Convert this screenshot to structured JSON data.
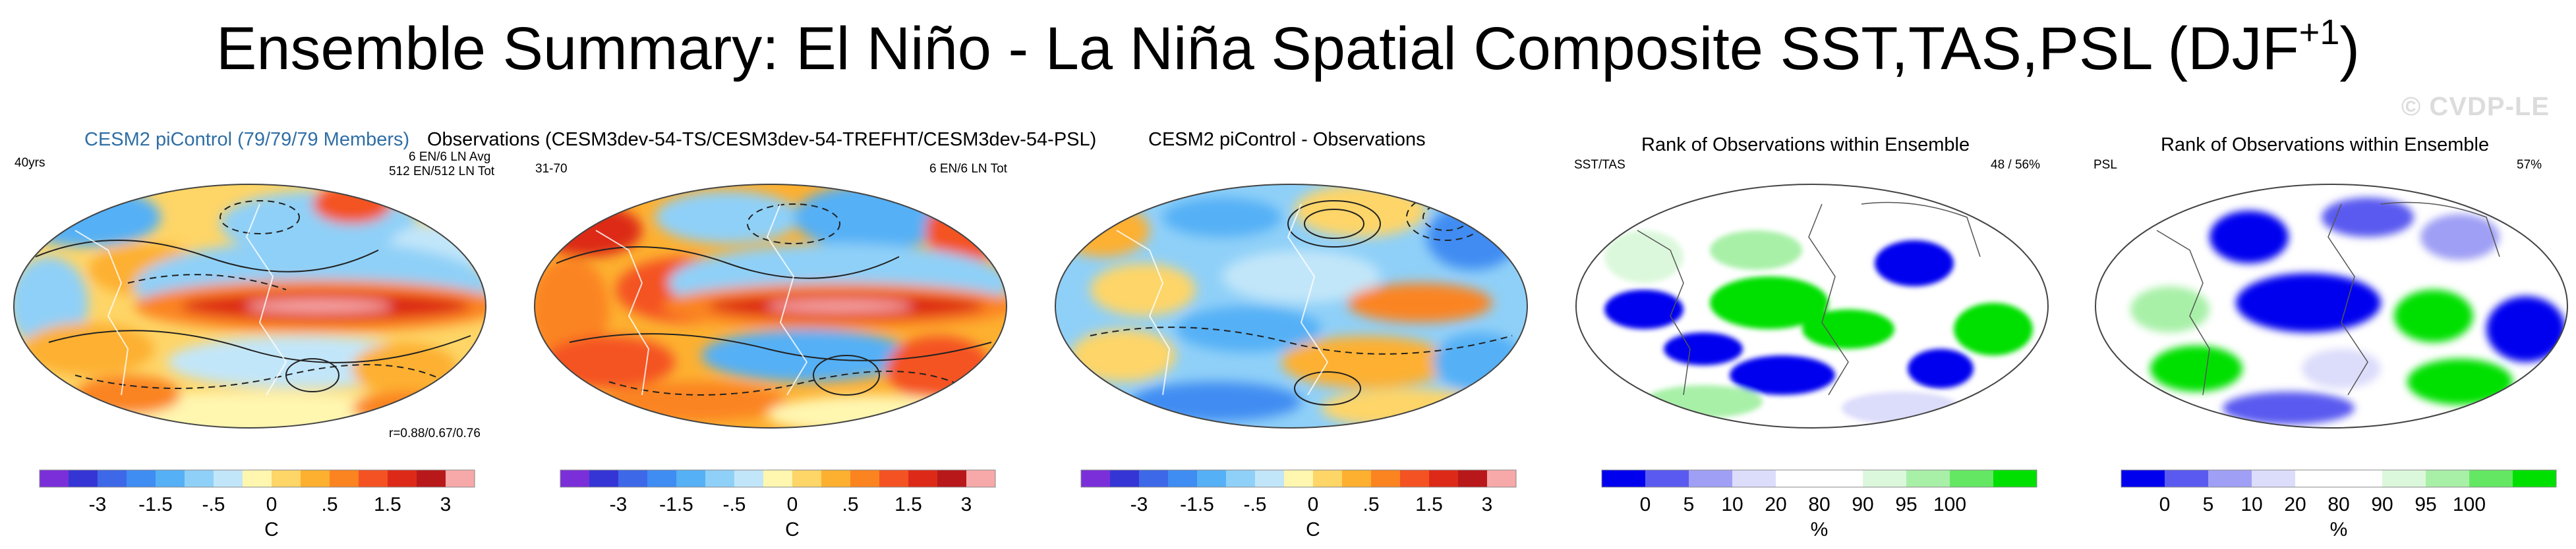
{
  "title": {
    "main": "Ensemble Summary: El Niño - La Niña Spatial Composite SST,TAS,PSL (DJF",
    "superscript": "+1",
    "close": ")"
  },
  "watermark": "© CVDP-LE",
  "colors": {
    "title_blue": "#2f6ea6",
    "land_rank": "#ffffff"
  },
  "panels": [
    {
      "id": "ensemble",
      "title": "CESM2 piControl (79/79/79 Members)",
      "left_label": "40yrs",
      "right_label_1": "6 EN/6 LN Avg",
      "right_label_2": "512 EN/512 LN Tot",
      "bottom_right": "r=0.88/0.67/0.76"
    },
    {
      "id": "observations",
      "title": "Observations (CESM3dev-54-TS/CESM3dev-54-TREFHT/CESM3dev-54-PSL)",
      "left_label": "31-70",
      "right_label_1": "6 EN/6 LN Tot"
    },
    {
      "id": "difference",
      "title": "CESM2 piControl - Observations"
    },
    {
      "id": "rank-sst",
      "title": "Rank of Observations within Ensemble",
      "left_label": "SST/TAS",
      "right_label_1": "48 /  56%"
    },
    {
      "id": "rank-psl",
      "title": "Rank of Observations within Ensemble",
      "left_label": "PSL",
      "right_label_1": "57%"
    }
  ],
  "temp_colorbar": {
    "colors": [
      "#7a2fd9",
      "#3535d6",
      "#3d68e8",
      "#3f8cf2",
      "#55b0f6",
      "#8fd0f8",
      "#c2e6f9",
      "#fff6b0",
      "#fed567",
      "#fdb030",
      "#fb8420",
      "#f45222",
      "#dd2a18",
      "#b8181a",
      "#f7a8a8"
    ],
    "ticks": [
      "-3",
      "-1.5",
      "-.5",
      "0",
      ".5",
      "1.5",
      "3"
    ],
    "unit": "C"
  },
  "rank_colorbar": {
    "colors": [
      "#0000ef",
      "#5a5af0",
      "#9f9ff5",
      "#dcdcfb",
      "#ffffff",
      "#ffffff",
      "#dcf8dc",
      "#a8f0a8",
      "#64e864",
      "#00e000"
    ],
    "ticks": [
      "0",
      "5",
      "10",
      "20",
      "80",
      "90",
      "95",
      "100"
    ],
    "unit": "%"
  }
}
